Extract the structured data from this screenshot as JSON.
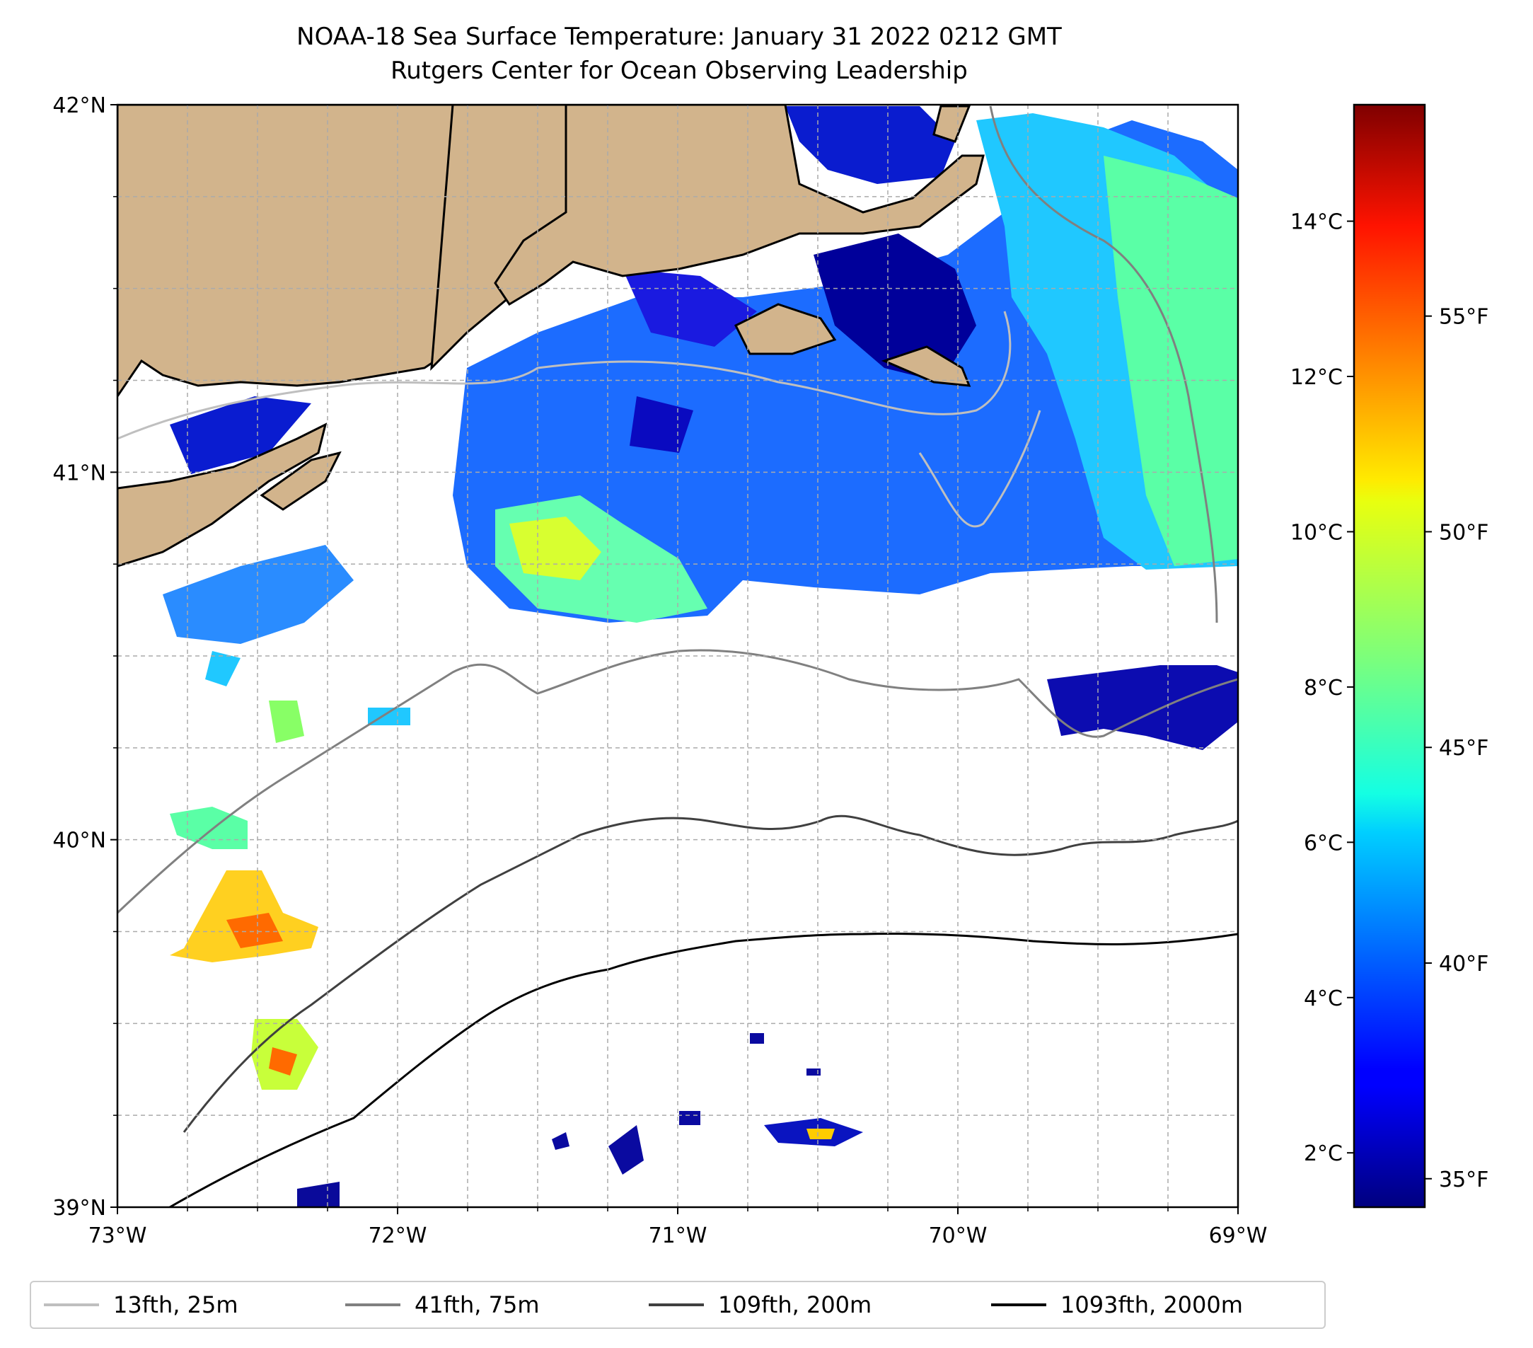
{
  "title": {
    "line1": "NOAA-18 Sea Surface Temperature: January 31 2022 0212 GMT",
    "line2": "Rutgers Center for Ocean Observing Leadership"
  },
  "map": {
    "lon_range": [
      -73,
      -69
    ],
    "lat_range": [
      39,
      42
    ],
    "lon_ticks": [
      {
        "value": -73,
        "label": "73°W"
      },
      {
        "value": -72,
        "label": "72°W"
      },
      {
        "value": -71,
        "label": "71°W"
      },
      {
        "value": -70,
        "label": "70°W"
      },
      {
        "value": -69,
        "label": "69°W"
      }
    ],
    "lat_ticks": [
      {
        "value": 42,
        "label": "42°N"
      },
      {
        "value": 41,
        "label": "41°N"
      },
      {
        "value": 40,
        "label": "40°N"
      },
      {
        "value": 39,
        "label": "39°N"
      }
    ],
    "grid": true,
    "land_color": "#D2B48C",
    "missing_data_color": "#ffffff"
  },
  "colorbar": {
    "colormap": "jet",
    "range_c": [
      1.3,
      15.5
    ],
    "celsius_ticks": [
      {
        "value": 2,
        "label": "2°C"
      },
      {
        "value": 4,
        "label": "4°C"
      },
      {
        "value": 6,
        "label": "6°C"
      },
      {
        "value": 8,
        "label": "8°C"
      },
      {
        "value": 10,
        "label": "10°C"
      },
      {
        "value": 12,
        "label": "12°C"
      },
      {
        "value": 14,
        "label": "14°C"
      }
    ],
    "fahrenheit_ticks": [
      {
        "value": 35,
        "label": "35°F"
      },
      {
        "value": 40,
        "label": "40°F"
      },
      {
        "value": 45,
        "label": "45°F"
      },
      {
        "value": 50,
        "label": "50°F"
      },
      {
        "value": 55,
        "label": "55°F"
      }
    ]
  },
  "legend": {
    "placement": "bottom",
    "items": [
      {
        "label": "13fth, 25m",
        "color": "#bfbfbf"
      },
      {
        "label": "41fth, 75m",
        "color": "#808080"
      },
      {
        "label": "109fth, 200m",
        "color": "#404040"
      },
      {
        "label": "1093fth, 2000m",
        "color": "#000000"
      }
    ]
  }
}
